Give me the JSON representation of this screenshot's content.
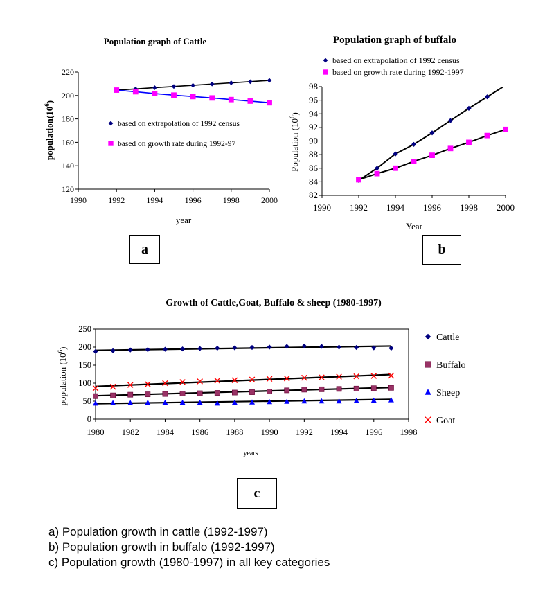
{
  "chart_data": [
    {
      "id": "a",
      "type": "line",
      "title": "Population graph of Cattle",
      "xlabel": "year",
      "ylabel": "population(10⁶)",
      "xlim": [
        1990,
        2000
      ],
      "ylim": [
        120,
        220
      ],
      "xticks": [
        1990,
        1992,
        1994,
        1996,
        1998,
        2000
      ],
      "yticks": [
        120,
        140,
        160,
        180,
        200,
        220
      ],
      "grid": false,
      "legend_position": "center",
      "series": [
        {
          "name": "based on extrapolation of 1992 census",
          "color": "#000080",
          "marker": "diamond",
          "line_color": "#000000",
          "x": [
            1992,
            1993,
            1994,
            1995,
            1996,
            1997,
            1998,
            1999,
            2000
          ],
          "y": [
            204.6,
            205.6,
            206.7,
            207.7,
            208.7,
            209.8,
            210.8,
            211.8,
            212.9
          ]
        },
        {
          "name": "based on growth rate during 1992-97",
          "color": "#ff00ff",
          "marker": "square",
          "line_color": "#0000ff",
          "x": [
            1992,
            1993,
            1994,
            1995,
            1996,
            1997,
            1998,
            1999,
            2000
          ],
          "y": [
            204.6,
            203.2,
            201.6,
            200.3,
            199.1,
            197.9,
            196.5,
            195.2,
            193.8
          ]
        }
      ]
    },
    {
      "id": "b",
      "type": "line",
      "title": "Population graph of buffalo",
      "xlabel": "Year",
      "ylabel": "Population (10⁶)",
      "xlim": [
        1990,
        2000
      ],
      "ylim": [
        82,
        98
      ],
      "xticks": [
        1990,
        1992,
        1994,
        1996,
        1998,
        2000
      ],
      "yticks": [
        82,
        84,
        86,
        88,
        90,
        92,
        94,
        96,
        98
      ],
      "grid": false,
      "legend_position": "top",
      "series": [
        {
          "name": "based on extrapolation of 1992 census",
          "color": "#000080",
          "marker": "diamond",
          "line_color": "#000000",
          "x": [
            1992,
            1993,
            1994,
            1995,
            1996,
            1997,
            1998,
            1999,
            2000
          ],
          "y": [
            84.2,
            86.0,
            88.1,
            89.5,
            91.2,
            93.0,
            94.8,
            96.5,
            98.2
          ]
        },
        {
          "name": "based on growth rate during 1992-1997",
          "color": "#ff00ff",
          "marker": "square",
          "line_color": "#000000",
          "x": [
            1992,
            1993,
            1994,
            1995,
            1996,
            1997,
            1998,
            1999,
            2000
          ],
          "y": [
            84.3,
            85.2,
            86.0,
            87.0,
            87.9,
            88.9,
            89.8,
            90.8,
            91.7
          ]
        }
      ]
    },
    {
      "id": "c",
      "type": "line",
      "title": "Growth of Cattle,Goat,  Buffalo & sheep (1980-1997)",
      "xlabel": "years",
      "ylabel": "population (10⁶)",
      "xlim": [
        1980,
        1998
      ],
      "ylim": [
        0,
        250
      ],
      "xticks": [
        1980,
        1982,
        1984,
        1986,
        1988,
        1990,
        1992,
        1994,
        1996,
        1998
      ],
      "yticks": [
        0,
        50,
        100,
        150,
        200,
        250
      ],
      "grid": false,
      "legend_position": "right",
      "x": [
        1980,
        1981,
        1982,
        1983,
        1984,
        1985,
        1986,
        1987,
        1988,
        1989,
        1990,
        1991,
        1992,
        1993,
        1994,
        1995,
        1996,
        1997
      ],
      "series": [
        {
          "name": "Cattle",
          "color": "#000080",
          "marker": "diamond",
          "values": [
            188,
            190,
            192,
            193,
            194,
            195,
            196,
            197,
            198,
            199,
            200,
            202,
            203,
            202,
            200,
            199,
            198,
            197
          ]
        },
        {
          "name": "Buffalo",
          "color": "#993366",
          "marker": "square",
          "values": [
            64,
            66,
            68,
            69,
            70,
            71,
            72,
            73,
            74,
            75,
            77,
            80,
            82,
            83,
            84,
            85,
            86,
            87
          ]
        },
        {
          "name": "Sheep",
          "color": "#0000ff",
          "marker": "triangle",
          "values": [
            44,
            45,
            45,
            46,
            46,
            46,
            46,
            44,
            46,
            47,
            48,
            49,
            50,
            50,
            50,
            51,
            52,
            53
          ]
        },
        {
          "name": "Goat",
          "color": "#ff0000",
          "marker": "x",
          "values": [
            86,
            90,
            95,
            97,
            100,
            103,
            105,
            107,
            108,
            110,
            112,
            113,
            115,
            116,
            118,
            119,
            120,
            121
          ]
        }
      ],
      "trendlines": [
        {
          "series": "Cattle",
          "start": 191,
          "end": 203
        },
        {
          "series": "Goat",
          "start": 91,
          "end": 124
        },
        {
          "series": "Buffalo",
          "start": 65,
          "end": 88
        },
        {
          "series": "Sheep",
          "start": 43,
          "end": 55
        }
      ]
    }
  ],
  "panels": {
    "a": "a",
    "b": "b",
    "c": "c"
  },
  "captions": [
    "a)  Population growth in cattle (1992-1997)",
    "b)  Population growth in buffalo (1992-1997)",
    "c)  Population growth  (1980-1997) in all key categories"
  ]
}
